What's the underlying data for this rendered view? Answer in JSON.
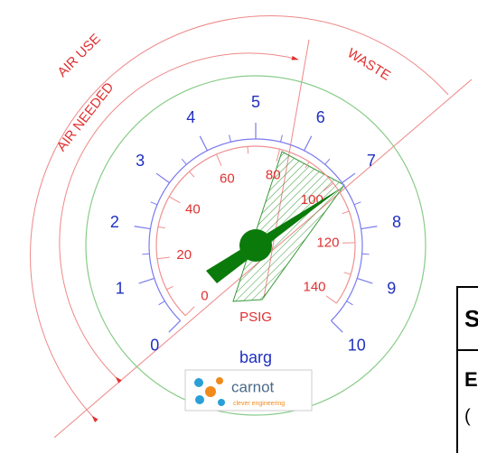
{
  "labels": {
    "air_use": "AIR USE",
    "air_needed": "AIR NEEDED",
    "waste": "WASTE"
  },
  "gauge": {
    "barg_scale": [
      0,
      1,
      2,
      3,
      4,
      5,
      6,
      7,
      8,
      9,
      10
    ],
    "psig_scale": [
      0,
      20,
      40,
      60,
      80,
      100,
      120,
      140
    ],
    "psig_unit": "PSIG",
    "barg_unit": "barg"
  },
  "logo": {
    "name": "carnot",
    "tagline": "clever engineering"
  },
  "table": {
    "rows": [
      [
        "S"
      ],
      [
        "E"
      ],
      [
        "("
      ]
    ]
  }
}
